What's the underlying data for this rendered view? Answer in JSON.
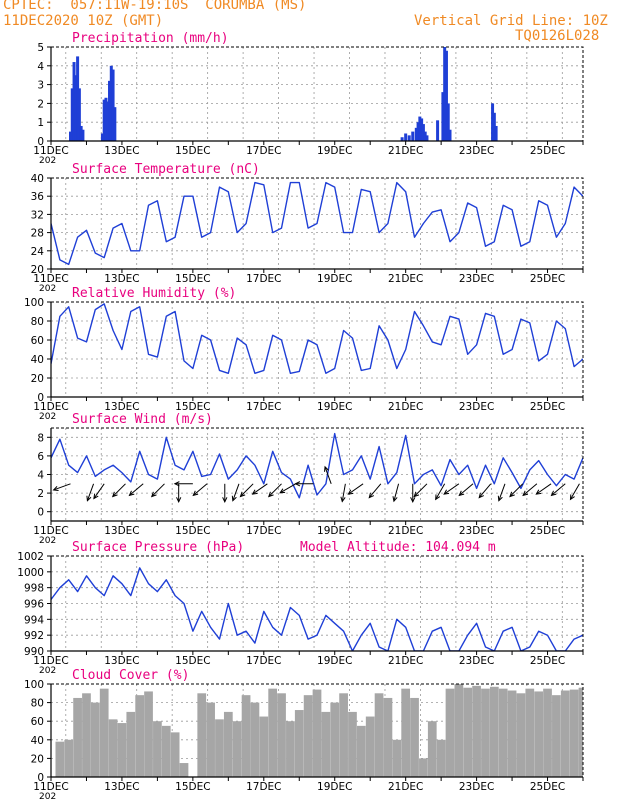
{
  "header": {
    "line1": "CPTEC:  057:11W-19:10S  CORUMBA (MS)",
    "line2": "11DEC2020 10Z (GMT)",
    "right1": "Vertical Grid Line: 10Z",
    "right2": "TQ0126L028"
  },
  "colors": {
    "header": "#f08a24",
    "title": "#e8007f",
    "series": "#1f3fd6",
    "cloud": "#a6a6a6",
    "grid": "#9a9a9a",
    "axis": "#000000"
  },
  "x_ticks": [
    "11DEC",
    "13DEC",
    "15DEC",
    "17DEC",
    "19DEC",
    "21DEC",
    "23DEC",
    "25DEC"
  ],
  "x_cut_label": "202",
  "chart_data": [
    {
      "id": "precip",
      "type": "bar",
      "title": "Precipitation  (mm/h)",
      "ylim": [
        0,
        5
      ],
      "yticks": [
        0,
        1,
        2,
        3,
        4,
        5
      ],
      "grid": true,
      "x": [
        0.55,
        0.6,
        0.65,
        0.7,
        0.75,
        0.8,
        0.85,
        0.9,
        1.45,
        1.5,
        1.55,
        1.6,
        1.65,
        1.7,
        1.75,
        1.8,
        9.9,
        10.0,
        10.1,
        10.2,
        10.3,
        10.35,
        10.4,
        10.45,
        10.5,
        10.55,
        10.6,
        10.9,
        11.05,
        11.1,
        11.15,
        11.2,
        11.25,
        12.45,
        12.5,
        12.55
      ],
      "values": [
        0.5,
        2.8,
        4.2,
        3.5,
        4.5,
        2.8,
        0.8,
        0.6,
        0.4,
        2.2,
        2.3,
        2.1,
        3.2,
        4.0,
        3.8,
        1.8,
        0.2,
        0.4,
        0.3,
        0.5,
        0.7,
        1.0,
        1.3,
        1.2,
        0.9,
        0.5,
        0.3,
        1.1,
        2.6,
        5.0,
        4.8,
        2.0,
        0.6,
        2.0,
        1.5,
        0.8
      ]
    },
    {
      "id": "temp",
      "type": "line",
      "title": "Surface Temperature (nC)",
      "ylim": [
        20,
        40
      ],
      "yticks": [
        20,
        24,
        28,
        32,
        36,
        40
      ],
      "grid": true,
      "x": [
        0.0,
        0.25,
        0.5,
        0.75,
        1.0,
        1.25,
        1.5,
        1.75,
        2.0,
        2.25,
        2.5,
        2.75,
        3.0,
        3.25,
        3.5,
        3.75,
        4.0,
        4.25,
        4.5,
        4.75,
        5.0,
        5.25,
        5.5,
        5.75,
        6.0,
        6.25,
        6.5,
        6.75,
        7.0,
        7.25,
        7.5,
        7.75,
        8.0,
        8.25,
        8.5,
        8.75,
        9.0,
        9.25,
        9.5,
        9.75,
        10.0,
        10.25,
        10.5,
        10.75,
        11.0,
        11.25,
        11.5,
        11.75,
        12.0,
        12.25,
        12.5,
        12.75,
        13.0,
        13.25,
        13.5,
        13.75,
        14.0,
        14.25,
        14.5,
        14.75,
        15.0
      ],
      "series": [
        {
          "values": [
            30.0,
            22.0,
            21.0,
            27.0,
            28.5,
            23.5,
            22.5,
            29.0,
            30.0,
            24.0,
            24.0,
            34.0,
            35.0,
            26.0,
            27.0,
            36.0,
            36.0,
            27.0,
            28.0,
            38.0,
            37.0,
            28.0,
            30.0,
            39.0,
            38.5,
            28.0,
            29.0,
            39.0,
            39.0,
            29.0,
            30.0,
            39.0,
            38.0,
            28.0,
            28.0,
            37.5,
            37.0,
            28.0,
            30.0,
            39.0,
            37.0,
            27.0,
            30.0,
            32.5,
            33.0,
            26.0,
            28.0,
            34.5,
            33.5,
            25.0,
            26.0,
            34.0,
            33.0,
            25.0,
            26.0,
            35.0,
            34.0,
            27.0,
            30.0,
            38.0,
            36.0
          ]
        }
      ]
    },
    {
      "id": "rh",
      "type": "line",
      "title": "Relative Humidity  (%)",
      "ylim": [
        0,
        100
      ],
      "yticks": [
        0,
        20,
        40,
        60,
        80,
        100
      ],
      "grid": true,
      "x": [
        0.0,
        0.25,
        0.5,
        0.75,
        1.0,
        1.25,
        1.5,
        1.75,
        2.0,
        2.25,
        2.5,
        2.75,
        3.0,
        3.25,
        3.5,
        3.75,
        4.0,
        4.25,
        4.5,
        4.75,
        5.0,
        5.25,
        5.5,
        5.75,
        6.0,
        6.25,
        6.5,
        6.75,
        7.0,
        7.25,
        7.5,
        7.75,
        8.0,
        8.25,
        8.5,
        8.75,
        9.0,
        9.25,
        9.5,
        9.75,
        10.0,
        10.25,
        10.5,
        10.75,
        11.0,
        11.25,
        11.5,
        11.75,
        12.0,
        12.25,
        12.5,
        12.75,
        13.0,
        13.25,
        13.5,
        13.75,
        14.0,
        14.25,
        14.5,
        14.75,
        15.0
      ],
      "series": [
        {
          "values": [
            35.0,
            85.0,
            95.0,
            62.0,
            58.0,
            92.0,
            98.0,
            70.0,
            50.0,
            90.0,
            95.0,
            45.0,
            42.0,
            85.0,
            90.0,
            38.0,
            30.0,
            65.0,
            60.0,
            28.0,
            25.0,
            62.0,
            55.0,
            25.0,
            28.0,
            65.0,
            60.0,
            25.0,
            27.0,
            60.0,
            55.0,
            25.0,
            30.0,
            70.0,
            62.0,
            28.0,
            30.0,
            75.0,
            60.0,
            30.0,
            50.0,
            90.0,
            75.0,
            58.0,
            55.0,
            85.0,
            82.0,
            45.0,
            55.0,
            88.0,
            85.0,
            45.0,
            50.0,
            82.0,
            78.0,
            38.0,
            45.0,
            80.0,
            72.0,
            32.0,
            40.0
          ]
        }
      ]
    },
    {
      "id": "wind",
      "type": "line",
      "title": "Surface Wind  (m/s)",
      "ylim": [
        -1,
        9
      ],
      "yticks": [
        0,
        2,
        4,
        6,
        8
      ],
      "grid": true,
      "x": [
        0.0,
        0.25,
        0.5,
        0.75,
        1.0,
        1.25,
        1.5,
        1.75,
        2.0,
        2.25,
        2.5,
        2.75,
        3.0,
        3.25,
        3.5,
        3.75,
        4.0,
        4.25,
        4.5,
        4.75,
        5.0,
        5.25,
        5.5,
        5.75,
        6.0,
        6.25,
        6.5,
        6.75,
        7.0,
        7.25,
        7.5,
        7.75,
        8.0,
        8.25,
        8.5,
        8.75,
        9.0,
        9.25,
        9.5,
        9.75,
        10.0,
        10.25,
        10.5,
        10.75,
        11.0,
        11.25,
        11.5,
        11.75,
        12.0,
        12.25,
        12.5,
        12.75,
        13.0,
        13.25,
        13.5,
        13.75,
        14.0,
        14.25,
        14.5,
        14.75,
        15.0
      ],
      "series": [
        {
          "values": [
            5.8,
            7.8,
            5.0,
            4.2,
            6.0,
            3.8,
            4.5,
            5.0,
            4.2,
            3.2,
            6.5,
            4.0,
            3.5,
            8.0,
            5.0,
            4.5,
            6.5,
            3.8,
            4.0,
            6.2,
            3.5,
            4.5,
            6.0,
            5.0,
            3.0,
            6.5,
            4.2,
            3.5,
            1.5,
            5.0,
            1.8,
            3.0,
            8.4,
            4.0,
            4.5,
            6.0,
            3.5,
            7.0,
            3.0,
            4.2,
            8.2,
            3.0,
            4.0,
            4.5,
            2.8,
            5.6,
            4.0,
            5.0,
            2.5,
            5.0,
            3.0,
            5.8,
            4.2,
            2.5,
            4.5,
            5.5,
            4.0,
            2.8,
            4.0,
            3.5,
            5.8
          ]
        }
      ],
      "arrows_x": [
        0.55,
        1.2,
        1.5,
        2.1,
        2.6,
        3.2,
        3.6,
        4.0,
        4.4,
        4.9,
        5.3,
        5.7,
        6.1,
        6.5,
        6.9,
        7.4,
        7.9,
        8.3,
        8.8,
        9.3,
        9.8,
        10.2,
        10.6,
        11.1,
        11.5,
        11.9,
        12.4,
        12.8,
        13.3,
        13.7,
        14.1,
        14.5,
        14.9
      ],
      "arrows_dir": [
        250,
        200,
        215,
        225,
        230,
        225,
        180,
        270,
        230,
        180,
        200,
        225,
        235,
        225,
        240,
        270,
        340,
        190,
        235,
        220,
        195,
        180,
        225,
        210,
        235,
        230,
        220,
        200,
        225,
        230,
        235,
        230,
        210
      ]
    },
    {
      "id": "press",
      "type": "line",
      "title": "Surface Pressure (hPa)",
      "annotation": "Model Altitude: 104.094  m",
      "ylim": [
        990,
        1002
      ],
      "yticks": [
        990,
        992,
        994,
        996,
        998,
        1000,
        1002
      ],
      "grid": true,
      "x": [
        0.0,
        0.25,
        0.5,
        0.75,
        1.0,
        1.25,
        1.5,
        1.75,
        2.0,
        2.25,
        2.5,
        2.75,
        3.0,
        3.25,
        3.5,
        3.75,
        4.0,
        4.25,
        4.5,
        4.75,
        5.0,
        5.25,
        5.5,
        5.75,
        6.0,
        6.25,
        6.5,
        6.75,
        7.0,
        7.25,
        7.5,
        7.75,
        8.0,
        8.25,
        8.5,
        8.75,
        9.0,
        9.25,
        9.5,
        9.75,
        10.0,
        10.25,
        10.5,
        10.75,
        11.0,
        11.25,
        11.5,
        11.75,
        12.0,
        12.25,
        12.5,
        12.75,
        13.0,
        13.25,
        13.5,
        13.75,
        14.0,
        14.25,
        14.5,
        14.75,
        15.0
      ],
      "series": [
        {
          "values": [
            996.5,
            998.0,
            999.0,
            997.5,
            999.5,
            998.0,
            997.0,
            999.5,
            998.5,
            997.0,
            1000.5,
            998.5,
            997.5,
            999.0,
            997.0,
            996.0,
            992.5,
            995.0,
            993.0,
            991.5,
            996.0,
            992.0,
            992.5,
            991.0,
            995.0,
            993.0,
            992.0,
            995.5,
            994.5,
            991.5,
            992.0,
            994.5,
            993.5,
            992.5,
            990.0,
            992.0,
            993.5,
            990.5,
            990.0,
            994.0,
            993.0,
            990.0,
            990.0,
            992.5,
            993.0,
            990.0,
            990.0,
            992.0,
            993.5,
            990.5,
            990.0,
            992.5,
            993.0,
            990.0,
            990.5,
            992.5,
            992.0,
            990.0,
            990.0,
            991.5,
            992.0
          ]
        }
      ]
    },
    {
      "id": "cloud",
      "type": "area",
      "title": "Cloud Cover  (%)",
      "ylim": [
        0,
        100
      ],
      "yticks": [
        0,
        20,
        40,
        60,
        80,
        100
      ],
      "grid": true,
      "x": [
        0.0,
        0.25,
        0.5,
        0.75,
        1.0,
        1.25,
        1.5,
        1.75,
        2.0,
        2.25,
        2.5,
        2.75,
        3.0,
        3.25,
        3.5,
        3.75,
        4.0,
        4.25,
        4.5,
        4.75,
        5.0,
        5.25,
        5.5,
        5.75,
        6.0,
        6.25,
        6.5,
        6.75,
        7.0,
        7.25,
        7.5,
        7.75,
        8.0,
        8.25,
        8.5,
        8.75,
        9.0,
        9.25,
        9.5,
        9.75,
        10.0,
        10.25,
        10.5,
        10.75,
        11.0,
        11.25,
        11.5,
        11.75,
        12.0,
        12.25,
        12.5,
        12.75,
        13.0,
        13.25,
        13.5,
        13.75,
        14.0,
        14.25,
        14.5,
        14.75,
        15.0
      ],
      "series": [
        {
          "values": [
            0,
            38,
            40,
            85,
            90,
            80,
            95,
            62,
            58,
            70,
            88,
            92,
            60,
            55,
            48,
            15,
            0,
            90,
            80,
            62,
            70,
            60,
            88,
            80,
            65,
            95,
            90,
            60,
            72,
            88,
            94,
            70,
            80,
            90,
            70,
            55,
            65,
            90,
            85,
            40,
            95,
            85,
            20,
            60,
            40,
            95,
            100,
            96,
            98,
            95,
            97,
            95,
            93,
            90,
            95,
            92,
            95,
            88,
            93,
            94,
            96
          ]
        }
      ]
    }
  ]
}
